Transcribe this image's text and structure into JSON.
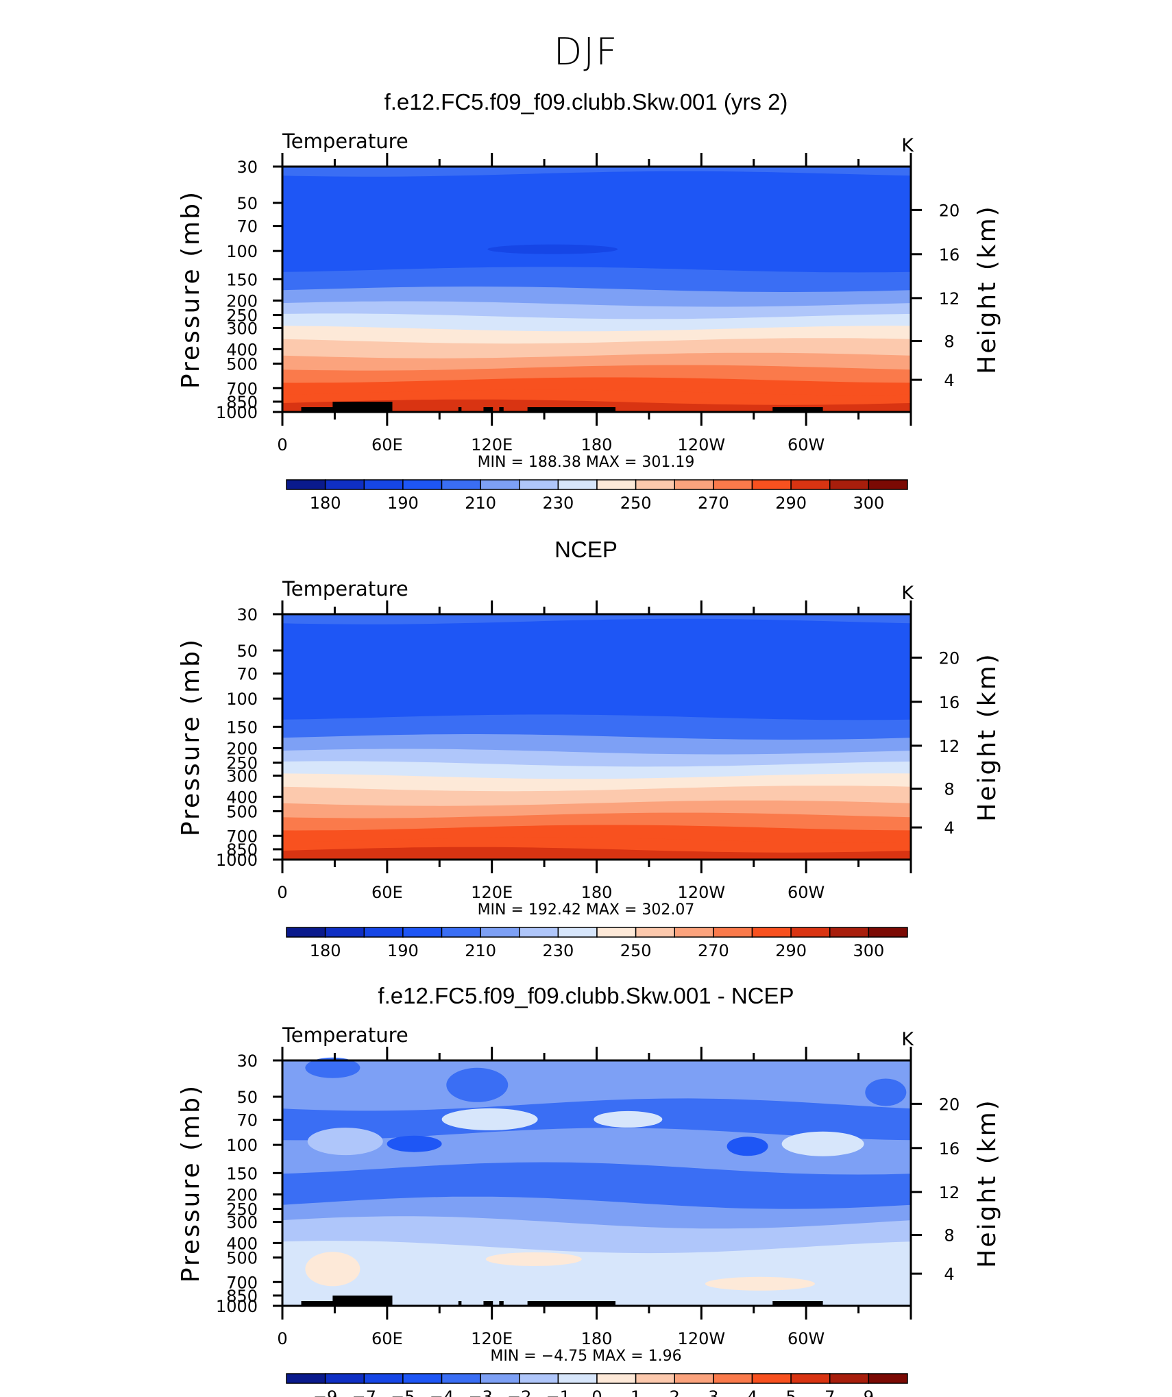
{
  "figure_title": "DJF",
  "chart_data": [
    {
      "type": "heatmap",
      "title": "f.e12.FC5.f09_f09.clubb.Skw.001 (yrs 2)",
      "variable": "Temperature",
      "units": "K",
      "ylabel_left": "Pressure (mb)",
      "ylabel_right": "Height (km)",
      "pressure_ticks": [
        30,
        50,
        70,
        100,
        150,
        200,
        250,
        300,
        400,
        500,
        700,
        850,
        1000
      ],
      "height_ticks": [
        20,
        16,
        12,
        8,
        4
      ],
      "x_ticks": [
        "0",
        "60E",
        "120E",
        "180",
        "120W",
        "60W"
      ],
      "stats_text": "MIN  =  188.38    MAX  =  301.19",
      "min": 188.38,
      "max": 301.19,
      "profile_levels": [
        210,
        205,
        200,
        200,
        210,
        220,
        230,
        240,
        250,
        260,
        270,
        280,
        290,
        300
      ],
      "colorbar_labels": [
        "180",
        "190",
        "210",
        "230",
        "250",
        "270",
        "290",
        "300"
      ],
      "terrain": true
    },
    {
      "type": "heatmap",
      "title": "NCEP",
      "variable": "Temperature",
      "units": "K",
      "ylabel_left": "Pressure (mb)",
      "ylabel_right": "Height (km)",
      "pressure_ticks": [
        30,
        50,
        70,
        100,
        150,
        200,
        250,
        300,
        400,
        500,
        700,
        850,
        1000
      ],
      "height_ticks": [
        20,
        16,
        12,
        8,
        4
      ],
      "x_ticks": [
        "0",
        "60E",
        "120E",
        "180",
        "120W",
        "60W"
      ],
      "stats_text": "MIN  =  192.42    MAX  =  302.07",
      "min": 192.42,
      "max": 302.07,
      "profile_levels": [
        210,
        205,
        200,
        200,
        210,
        220,
        230,
        240,
        250,
        260,
        270,
        280,
        290,
        300
      ],
      "colorbar_labels": [
        "180",
        "190",
        "210",
        "230",
        "250",
        "270",
        "290",
        "300"
      ],
      "terrain": false
    },
    {
      "type": "heatmap",
      "title": "f.e12.FC5.f09_f09.clubb.Skw.001 - NCEP",
      "variable": "Temperature",
      "units": "K",
      "ylabel_left": "Pressure (mb)",
      "ylabel_right": "Height (km)",
      "pressure_ticks": [
        30,
        50,
        70,
        100,
        150,
        200,
        250,
        300,
        400,
        500,
        700,
        850,
        1000
      ],
      "height_ticks": [
        20,
        16,
        12,
        8,
        4
      ],
      "x_ticks": [
        "0",
        "60E",
        "120E",
        "180",
        "120W",
        "60W"
      ],
      "stats_text": "MIN  =    −4.75    MAX  =     1.96",
      "min": -4.75,
      "max": 1.96,
      "profile_levels": [
        -3,
        -3,
        -4,
        -3,
        -4,
        -3,
        -2,
        -1,
        -1,
        -1,
        -1,
        -1
      ],
      "colorbar_labels": [
        "−9",
        "−7",
        "−5",
        "−4",
        "−3",
        "−2",
        "−1",
        "0",
        "1",
        "2",
        "3",
        "4",
        "5",
        "7",
        "9"
      ],
      "terrain": true
    }
  ],
  "colors": {
    "palette": [
      "#0a1a8c",
      "#0f2fc4",
      "#1646e6",
      "#1e56f5",
      "#3a6ef4",
      "#7da0f5",
      "#afc6fa",
      "#d7e6fb",
      "#fde9d8",
      "#fcc9ad",
      "#fba37d",
      "#fa7a4b",
      "#f8511f",
      "#d93412",
      "#a81e0c",
      "#7b0a04"
    ]
  }
}
